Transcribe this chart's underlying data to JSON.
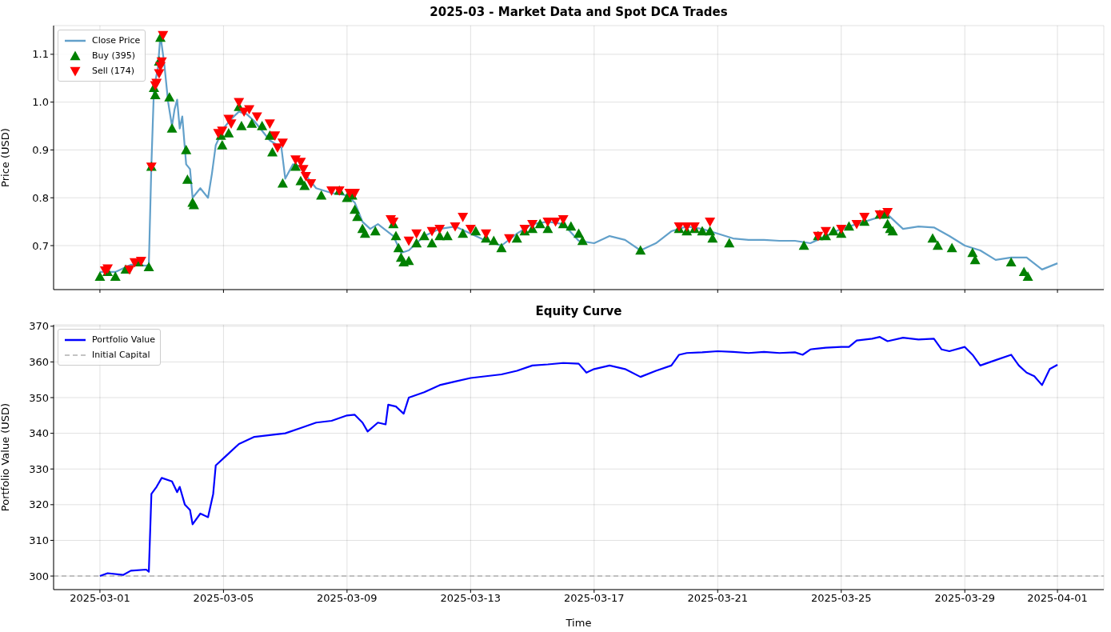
{
  "chart_data": [
    {
      "type": "line",
      "title": "2025-03 - Market Data and Spot DCA Trades",
      "ylabel": "Price (USD)",
      "xlim": [
        "2025-02-27T12:00",
        "2025-04-02T12:00"
      ],
      "xticks": [
        "2025-03-01",
        "2025-03-05",
        "2025-03-09",
        "2025-03-13",
        "2025-03-17",
        "2025-03-21",
        "2025-03-25",
        "2025-03-29",
        "2025-04-01"
      ],
      "ylim": [
        0.608,
        1.16
      ],
      "yticks": [
        0.7,
        0.8,
        0.9,
        {
          "value": 1,
          "label": "1.0"
        },
        1.1
      ],
      "tick_labels": "y",
      "grid": true,
      "legend": "top left",
      "series": [
        {
          "name": "Close Price",
          "color": "#62a0ca",
          "x": [
            "2025-03-01T00:00",
            "2025-03-01T12:00",
            "2025-03-02T00:00",
            "2025-03-02T12:00",
            "2025-03-02T14:00",
            "2025-03-02T16:00",
            "2025-03-02T18:00",
            "2025-03-02T21:00",
            "2025-03-02T23:00",
            "2025-03-03T02:00",
            "2025-03-03T05:00",
            "2025-03-03T08:00",
            "2025-03-03T10:00",
            "2025-03-03T12:00",
            "2025-03-03T14:00",
            "2025-03-03T16:00",
            "2025-03-03T19:00",
            "2025-03-03T22:00",
            "2025-03-04T00:00",
            "2025-03-04T06:00",
            "2025-03-04T12:00",
            "2025-03-04T15:00",
            "2025-03-04T18:00",
            "2025-03-05T00:00",
            "2025-03-05T06:00",
            "2025-03-05T12:00",
            "2025-03-05T18:00",
            "2025-03-06T00:00",
            "2025-03-06T06:00",
            "2025-03-06T12:00",
            "2025-03-06T18:00",
            "2025-03-06T21:00",
            "2025-03-07T00:00",
            "2025-03-07T06:00",
            "2025-03-07T12:00",
            "2025-03-07T18:00",
            "2025-03-08T00:00",
            "2025-03-08T12:00",
            "2025-03-09T00:00",
            "2025-03-09T06:00",
            "2025-03-09T12:00",
            "2025-03-09T18:00",
            "2025-03-10T00:00",
            "2025-03-10T12:00",
            "2025-03-10T18:00",
            "2025-03-11T00:00",
            "2025-03-11T12:00",
            "2025-03-12T00:00",
            "2025-03-12T12:00",
            "2025-03-13T00:00",
            "2025-03-13T12:00",
            "2025-03-14T00:00",
            "2025-03-14T12:00",
            "2025-03-15T00:00",
            "2025-03-15T12:00",
            "2025-03-16T00:00",
            "2025-03-16T12:00",
            "2025-03-17T00:00",
            "2025-03-17T12:00",
            "2025-03-18T00:00",
            "2025-03-18T12:00",
            "2025-03-19T00:00",
            "2025-03-19T12:00",
            "2025-03-20T00:00",
            "2025-03-20T12:00",
            "2025-03-21T00:00",
            "2025-03-21T12:00",
            "2025-03-22T00:00",
            "2025-03-22T12:00",
            "2025-03-23T00:00",
            "2025-03-23T12:00",
            "2025-03-24T00:00",
            "2025-03-24T12:00",
            "2025-03-25T00:00",
            "2025-03-25T12:00",
            "2025-03-26T00:00",
            "2025-03-26T12:00",
            "2025-03-27T00:00",
            "2025-03-27T12:00",
            "2025-03-28T00:00",
            "2025-03-28T12:00",
            "2025-03-29T00:00",
            "2025-03-29T12:00",
            "2025-03-30T00:00",
            "2025-03-30T12:00",
            "2025-03-31T00:00",
            "2025-03-31T12:00",
            "2025-04-01T00:00"
          ],
          "values": [
            0.645,
            0.645,
            0.66,
            0.658,
            0.66,
            0.87,
            1.03,
            1.07,
            1.14,
            1.08,
            1.0,
            0.95,
            0.985,
            1.005,
            0.945,
            0.97,
            0.87,
            0.86,
            0.8,
            0.82,
            0.8,
            0.85,
            0.91,
            0.945,
            0.965,
            0.98,
            0.975,
            0.96,
            0.94,
            0.92,
            0.91,
            0.905,
            0.84,
            0.87,
            0.865,
            0.84,
            0.82,
            0.81,
            0.805,
            0.79,
            0.75,
            0.735,
            0.745,
            0.72,
            0.685,
            0.69,
            0.72,
            0.735,
            0.74,
            0.725,
            0.71,
            0.7,
            0.725,
            0.745,
            0.75,
            0.745,
            0.71,
            0.705,
            0.72,
            0.712,
            0.69,
            0.705,
            0.73,
            0.74,
            0.735,
            0.725,
            0.715,
            0.712,
            0.712,
            0.71,
            0.71,
            0.705,
            0.72,
            0.735,
            0.745,
            0.755,
            0.765,
            0.735,
            0.74,
            0.738,
            0.72,
            0.7,
            0.69,
            0.67,
            0.675,
            0.675,
            0.65,
            0.663
          ]
        },
        {
          "name": "Buy (395)",
          "type": "scatter",
          "marker": "triangle",
          "color": "#008000",
          "x": [
            "2025-03-01T00:00",
            "2025-03-01T06:00",
            "2025-03-01T12:00",
            "2025-03-01T20:00",
            "2025-03-02T06:00",
            "2025-03-02T14:00",
            "2025-03-02T16:00",
            "2025-03-02T18:00",
            "2025-03-02T19:00",
            "2025-03-02T22:00",
            "2025-03-02T23:00",
            "2025-03-03T06:00",
            "2025-03-03T08:00",
            "2025-03-03T19:00",
            "2025-03-03T20:00",
            "2025-03-04T00:00",
            "2025-03-04T01:00",
            "2025-03-04T22:00",
            "2025-03-04T23:00",
            "2025-03-05T04:00",
            "2025-03-05T12:00",
            "2025-03-05T14:00",
            "2025-03-05T22:00",
            "2025-03-06T06:00",
            "2025-03-06T12:00",
            "2025-03-06T14:00",
            "2025-03-06T22:00",
            "2025-03-07T08:00",
            "2025-03-07T12:00",
            "2025-03-07T15:00",
            "2025-03-08T04:00",
            "2025-03-08T18:00",
            "2025-03-09T00:00",
            "2025-03-09T04:00",
            "2025-03-09T06:00",
            "2025-03-09T08:00",
            "2025-03-09T12:00",
            "2025-03-09T14:00",
            "2025-03-09T22:00",
            "2025-03-10T12:00",
            "2025-03-10T14:00",
            "2025-03-10T16:00",
            "2025-03-10T18:00",
            "2025-03-10T20:00",
            "2025-03-11T00:00",
            "2025-03-11T06:00",
            "2025-03-11T12:00",
            "2025-03-11T18:00",
            "2025-03-12T00:00",
            "2025-03-12T06:00",
            "2025-03-12T18:00",
            "2025-03-13T04:00",
            "2025-03-13T12:00",
            "2025-03-13T18:00",
            "2025-03-14T00:00",
            "2025-03-14T12:00",
            "2025-03-14T18:00",
            "2025-03-15T00:00",
            "2025-03-15T06:00",
            "2025-03-15T12:00",
            "2025-03-16T00:00",
            "2025-03-16T06:00",
            "2025-03-16T12:00",
            "2025-03-16T15:00",
            "2025-03-18T12:00",
            "2025-03-19T18:00",
            "2025-03-20T00:00",
            "2025-03-20T06:00",
            "2025-03-20T12:00",
            "2025-03-20T18:00",
            "2025-03-20T20:00",
            "2025-03-21T09:00",
            "2025-03-23T19:00",
            "2025-03-24T06:00",
            "2025-03-24T12:00",
            "2025-03-24T18:00",
            "2025-03-25T00:00",
            "2025-03-25T06:00",
            "2025-03-25T18:00",
            "2025-03-26T06:00",
            "2025-03-26T10:00",
            "2025-03-26T12:00",
            "2025-03-26T14:00",
            "2025-03-26T16:00",
            "2025-03-27T23:00",
            "2025-03-28T03:00",
            "2025-03-28T14:00",
            "2025-03-29T06:00",
            "2025-03-29T08:00",
            "2025-03-30T12:00",
            "2025-03-30T22:00",
            "2025-03-31T01:00"
          ],
          "values": [
            0.635,
            0.645,
            0.635,
            0.65,
            0.665,
            0.655,
            0.865,
            1.03,
            1.015,
            1.085,
            1.135,
            1.01,
            0.945,
            0.9,
            0.838,
            0.79,
            0.785,
            0.93,
            0.91,
            0.935,
            0.99,
            0.95,
            0.955,
            0.95,
            0.93,
            0.895,
            0.83,
            0.865,
            0.835,
            0.825,
            0.805,
            0.815,
            0.8,
            0.805,
            0.775,
            0.76,
            0.735,
            0.725,
            0.73,
            0.745,
            0.72,
            0.695,
            0.675,
            0.665,
            0.668,
            0.705,
            0.72,
            0.705,
            0.72,
            0.72,
            0.725,
            0.73,
            0.715,
            0.71,
            0.695,
            0.715,
            0.73,
            0.735,
            0.745,
            0.735,
            0.745,
            0.74,
            0.725,
            0.71,
            0.69,
            0.735,
            0.73,
            0.735,
            0.73,
            0.73,
            0.715,
            0.705,
            0.7,
            0.72,
            0.72,
            0.73,
            0.725,
            0.74,
            0.75,
            0.765,
            0.765,
            0.745,
            0.735,
            0.73,
            0.715,
            0.7,
            0.695,
            0.685,
            0.67,
            0.665,
            0.645,
            0.635
          ]
        },
        {
          "name": "Sell (174)",
          "type": "scatter",
          "marker": "triangle-down",
          "color": "#ff0000",
          "x": [
            "2025-03-01T04:00",
            "2025-03-01T06:00",
            "2025-03-01T23:00",
            "2025-03-02T03:00",
            "2025-03-02T08:00",
            "2025-03-02T16:00",
            "2025-03-02T19:00",
            "2025-03-02T20:00",
            "2025-03-02T22:00",
            "2025-03-02T23:00",
            "2025-03-03T00:00",
            "2025-03-03T01:00",
            "2025-03-04T20:00",
            "2025-03-04T23:00",
            "2025-03-05T04:00",
            "2025-03-05T06:00",
            "2025-03-05T12:00",
            "2025-03-05T16:00",
            "2025-03-05T20:00",
            "2025-03-06T02:00",
            "2025-03-06T12:00",
            "2025-03-06T16:00",
            "2025-03-06T18:00",
            "2025-03-06T22:00",
            "2025-03-07T08:00",
            "2025-03-07T12:00",
            "2025-03-07T14:00",
            "2025-03-07T16:00",
            "2025-03-07T20:00",
            "2025-03-08T12:00",
            "2025-03-08T18:00",
            "2025-03-09T02:00",
            "2025-03-09T06:00",
            "2025-03-10T10:00",
            "2025-03-10T12:00",
            "2025-03-11T00:00",
            "2025-03-11T06:00",
            "2025-03-11T18:00",
            "2025-03-12T00:00",
            "2025-03-12T12:00",
            "2025-03-12T18:00",
            "2025-03-13T00:00",
            "2025-03-13T12:00",
            "2025-03-14T06:00",
            "2025-03-14T18:00",
            "2025-03-15T00:00",
            "2025-03-15T12:00",
            "2025-03-15T18:00",
            "2025-03-16T00:00",
            "2025-03-19T18:00",
            "2025-03-20T00:00",
            "2025-03-20T06:00",
            "2025-03-20T18:00",
            "2025-03-24T06:00",
            "2025-03-24T12:00",
            "2025-03-25T00:00",
            "2025-03-25T12:00",
            "2025-03-25T18:00",
            "2025-03-26T06:00",
            "2025-03-26T12:00"
          ],
          "values": [
            0.648,
            0.652,
            0.65,
            0.665,
            0.668,
            0.865,
            1.035,
            1.04,
            1.06,
            1.075,
            1.085,
            1.14,
            0.935,
            0.94,
            0.965,
            0.955,
            1.0,
            0.98,
            0.985,
            0.97,
            0.955,
            0.93,
            0.905,
            0.915,
            0.88,
            0.875,
            0.86,
            0.845,
            0.83,
            0.815,
            0.815,
            0.81,
            0.81,
            0.755,
            0.75,
            0.71,
            0.725,
            0.73,
            0.735,
            0.74,
            0.76,
            0.735,
            0.725,
            0.715,
            0.735,
            0.745,
            0.75,
            0.75,
            0.755,
            0.74,
            0.74,
            0.74,
            0.75,
            0.72,
            0.73,
            0.735,
            0.745,
            0.76,
            0.765,
            0.77
          ]
        }
      ]
    },
    {
      "type": "line",
      "title": "Equity Curve",
      "xlabel": "Time",
      "ylabel": "Portfolio Value (USD)",
      "xlim": [
        "2025-02-27T12:00",
        "2025-04-02T12:00"
      ],
      "xticks": [
        "2025-03-01",
        "2025-03-05",
        "2025-03-09",
        "2025-03-13",
        "2025-03-17",
        "2025-03-21",
        "2025-03-25",
        "2025-03-29",
        "2025-04-01"
      ],
      "ylim": [
        296.2,
        370.4
      ],
      "yticks": [
        300,
        310,
        320,
        330,
        340,
        350,
        360,
        370
      ],
      "grid": true,
      "legend": "top left",
      "ref_lines": [
        {
          "axis": "y",
          "value": 300,
          "label": "Initial Capital",
          "color": "#b0b0b0",
          "line_style": "dashed"
        }
      ],
      "series": [
        {
          "name": "Portfolio Value",
          "color": "#0000ff",
          "x": [
            "2025-03-01T00:00",
            "2025-03-01T06:00",
            "2025-03-01T18:00",
            "2025-03-02T00:00",
            "2025-03-02T12:00",
            "2025-03-02T14:00",
            "2025-03-02T16:00",
            "2025-03-02T20:00",
            "2025-03-03T00:00",
            "2025-03-03T08:00",
            "2025-03-03T12:00",
            "2025-03-03T14:00",
            "2025-03-03T18:00",
            "2025-03-03T22:00",
            "2025-03-04T00:00",
            "2025-03-04T06:00",
            "2025-03-04T12:00",
            "2025-03-04T16:00",
            "2025-03-04T18:00",
            "2025-03-05T00:00",
            "2025-03-05T06:00",
            "2025-03-05T12:00",
            "2025-03-06T00:00",
            "2025-03-06T12:00",
            "2025-03-07T00:00",
            "2025-03-07T12:00",
            "2025-03-08T00:00",
            "2025-03-08T12:00",
            "2025-03-09T00:00",
            "2025-03-09T06:00",
            "2025-03-09T12:00",
            "2025-03-09T16:00",
            "2025-03-10T00:00",
            "2025-03-10T06:00",
            "2025-03-10T08:00",
            "2025-03-10T14:00",
            "2025-03-10T20:00",
            "2025-03-11T00:00",
            "2025-03-11T12:00",
            "2025-03-12T00:00",
            "2025-03-12T12:00",
            "2025-03-13T00:00",
            "2025-03-13T12:00",
            "2025-03-14T00:00",
            "2025-03-14T12:00",
            "2025-03-15T00:00",
            "2025-03-15T12:00",
            "2025-03-16T00:00",
            "2025-03-16T12:00",
            "2025-03-16T18:00",
            "2025-03-17T00:00",
            "2025-03-17T12:00",
            "2025-03-18T00:00",
            "2025-03-18T12:00",
            "2025-03-19T00:00",
            "2025-03-19T12:00",
            "2025-03-19T18:00",
            "2025-03-20T00:00",
            "2025-03-20T12:00",
            "2025-03-21T00:00",
            "2025-03-21T12:00",
            "2025-03-22T00:00",
            "2025-03-22T12:00",
            "2025-03-23T00:00",
            "2025-03-23T12:00",
            "2025-03-23T18:00",
            "2025-03-24T00:00",
            "2025-03-24T12:00",
            "2025-03-25T00:00",
            "2025-03-25T06:00",
            "2025-03-25T12:00",
            "2025-03-26T00:00",
            "2025-03-26T06:00",
            "2025-03-26T12:00",
            "2025-03-27T00:00",
            "2025-03-27T12:00",
            "2025-03-28T00:00",
            "2025-03-28T06:00",
            "2025-03-28T12:00",
            "2025-03-29T00:00",
            "2025-03-29T06:00",
            "2025-03-29T12:00",
            "2025-03-30T00:00",
            "2025-03-30T12:00",
            "2025-03-30T18:00",
            "2025-03-31T00:00",
            "2025-03-31T06:00",
            "2025-03-31T12:00",
            "2025-03-31T18:00",
            "2025-04-01T00:00"
          ],
          "values": [
            300,
            300.8,
            300.3,
            301.5,
            301.8,
            301.2,
            323,
            325,
            327.5,
            326.5,
            323.5,
            325,
            320,
            318.5,
            314.5,
            317.5,
            316.5,
            323,
            331,
            333,
            335,
            337,
            339,
            339.5,
            340,
            341.5,
            343,
            343.5,
            345,
            345.2,
            343,
            340.5,
            343,
            342.5,
            348,
            347.5,
            345.5,
            350,
            351.5,
            353.5,
            354.5,
            355.5,
            356,
            356.5,
            357.5,
            359,
            359.3,
            359.7,
            359.5,
            357,
            358,
            359,
            358,
            355.8,
            357.5,
            359,
            362,
            362.5,
            362.7,
            363,
            362.8,
            362.5,
            362.8,
            362.5,
            362.7,
            362,
            363.5,
            364,
            364.2,
            364.2,
            366,
            366.5,
            367,
            365.8,
            366.8,
            366.3,
            366.5,
            363.5,
            363,
            364.2,
            362,
            359,
            360.5,
            362,
            359,
            357,
            356,
            353.5,
            358,
            359.2
          ]
        }
      ]
    }
  ]
}
